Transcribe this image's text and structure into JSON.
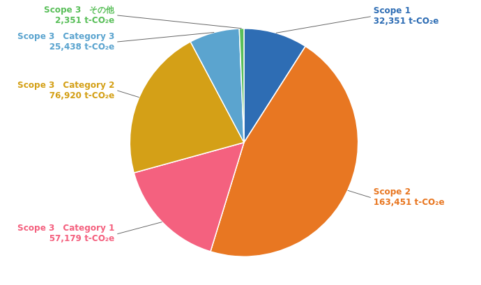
{
  "chart_data": {
    "type": "pie",
    "categories": [
      "Scope 1",
      "Scope 2",
      "Scope 3　Category 1",
      "Scope 3　Category 2",
      "Scope 3　Category 3",
      "Scope 3　その他"
    ],
    "values": [
      32351,
      163451,
      57179,
      76920,
      25438,
      2351
    ],
    "value_labels": [
      "32,351 t-CO₂e",
      "163,451 t-CO₂e",
      "57,179 t-CO₂e",
      "76,920 t-CO₂e",
      "25,438 t-CO₂e",
      "2,351 t-CO₂e"
    ],
    "colors": [
      "#2E6DB4",
      "#E87722",
      "#F4617F",
      "#D4A017",
      "#5BA4CF",
      "#5ABF5A"
    ],
    "data_labels": true
  }
}
